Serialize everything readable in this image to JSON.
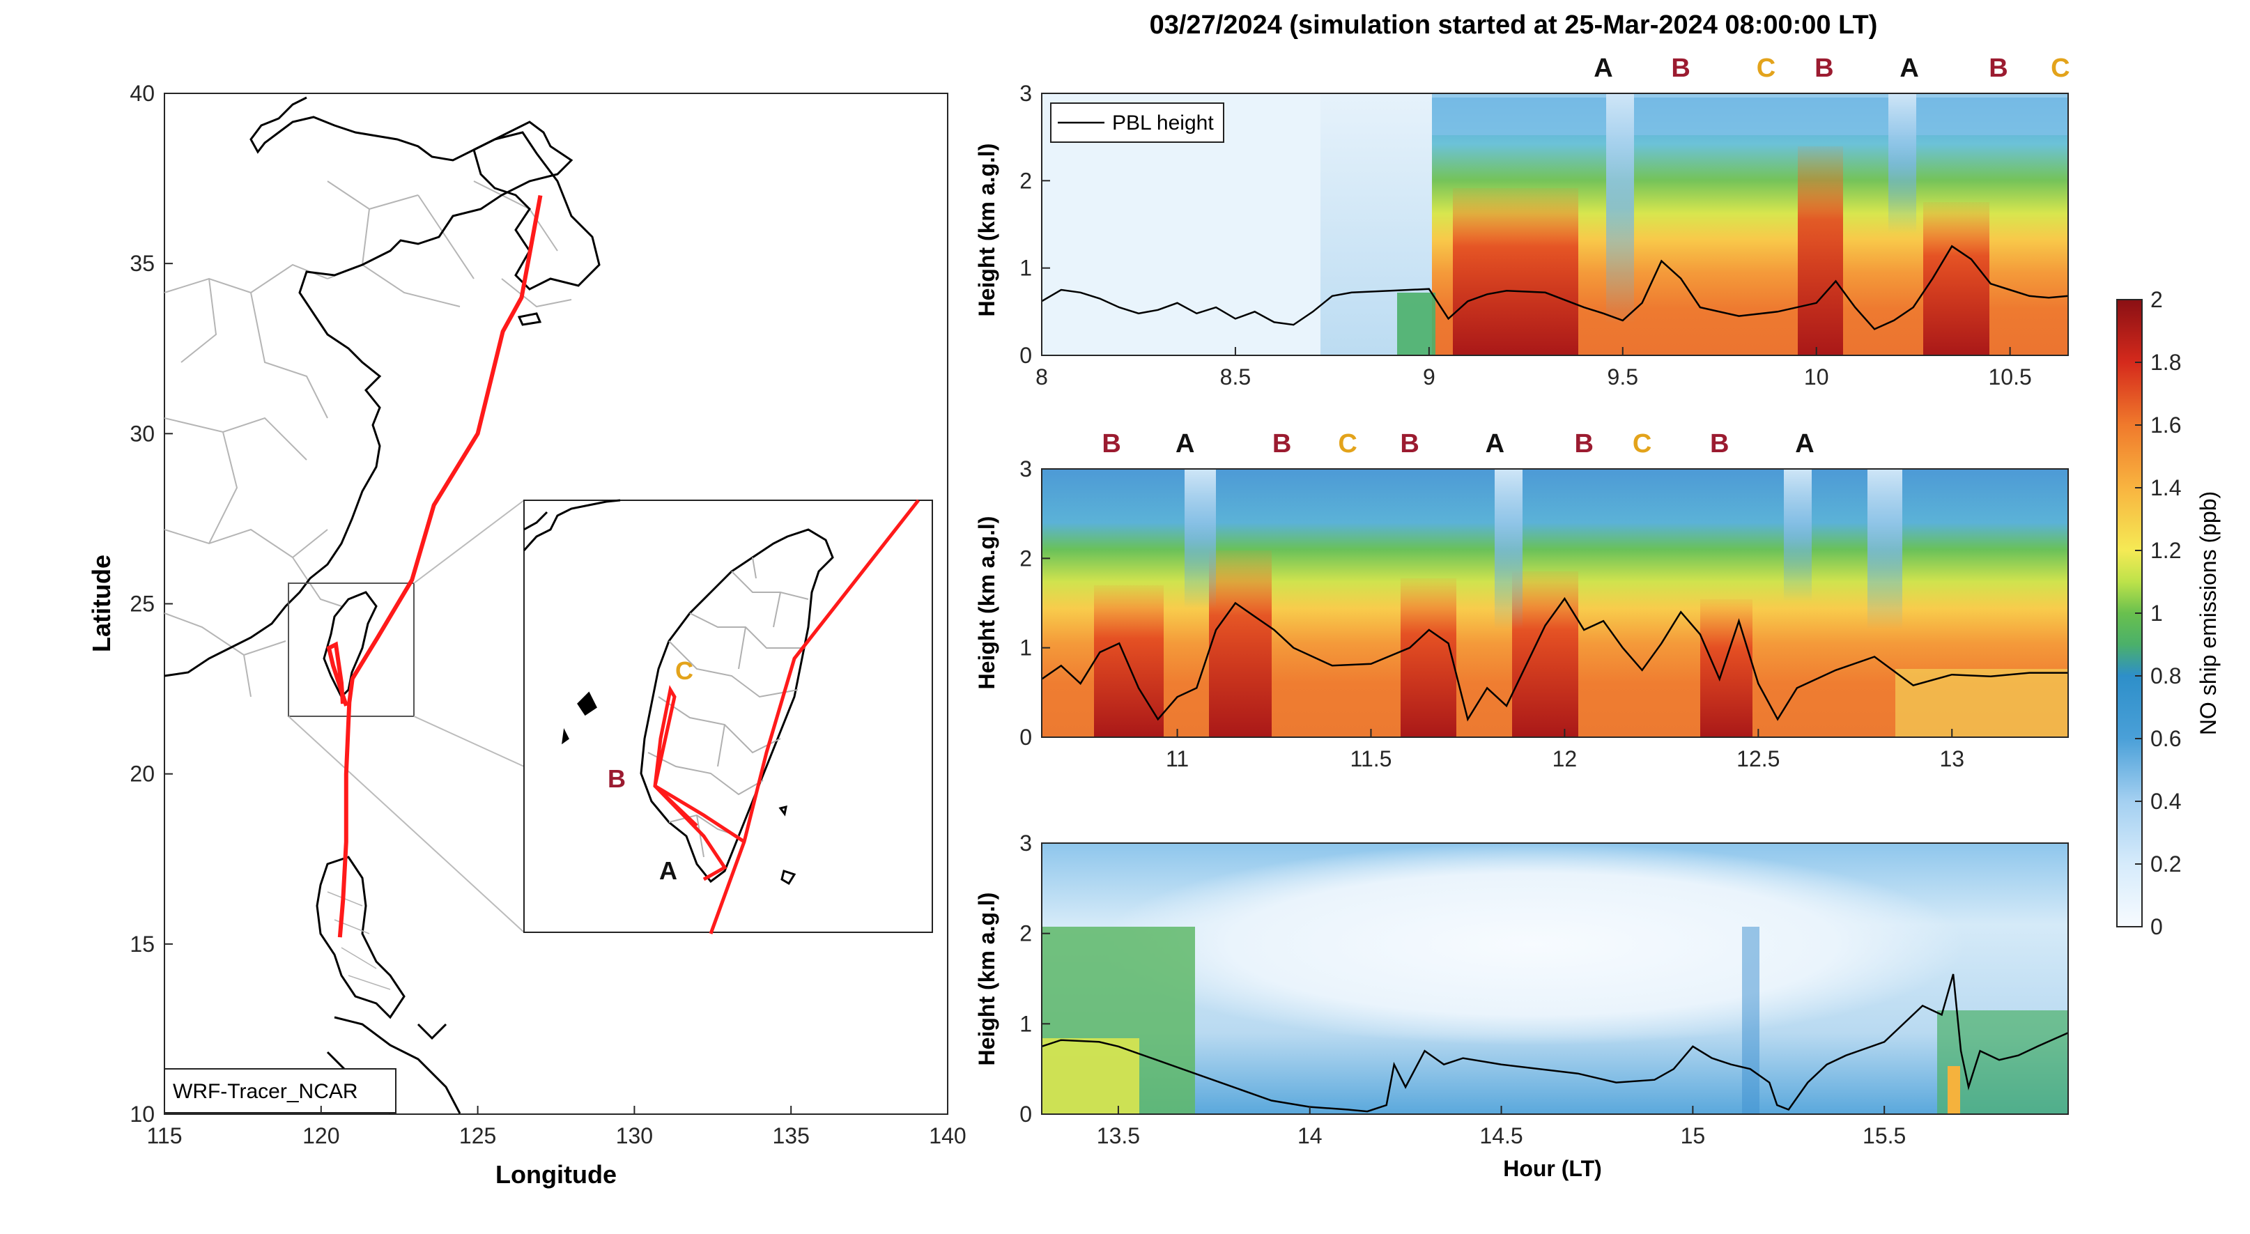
{
  "figure": {
    "title": "03/27/2024 (simulation started at 25-Mar-2024 08:00:00 LT)",
    "map_label": "WRF-Tracer_NCAR",
    "pbl_legend": "PBL height",
    "xlabel": "Hour (LT)",
    "ylabel": "Height (km a.g.l)",
    "colorbar_label": "NO ship emissions (ppb)"
  },
  "colors": {
    "track": "#ff1a1a",
    "A": "#111111",
    "B": "#9b1b30",
    "C": "#e3a31b",
    "coast": "#000000",
    "borders": "#b5b5b5"
  },
  "chart_data": [
    {
      "type": "line",
      "name": "ship-track-map",
      "xlabel": "Longitude",
      "ylabel": "Latitude",
      "xlim": [
        115,
        140
      ],
      "ylim": [
        10,
        40
      ],
      "xticks": [
        "115",
        "120",
        "125",
        "130",
        "135",
        "140"
      ],
      "yticks": [
        "10",
        "15",
        "20",
        "25",
        "30",
        "35",
        "40"
      ],
      "series": [
        {
          "x": [
            127.0,
            126.4,
            125.8,
            125.0,
            123.6,
            122.9,
            121.8,
            121.0,
            120.9,
            120.8,
            120.8,
            120.7,
            120.6
          ],
          "y": [
            37.0,
            34.0,
            33.0,
            30.0,
            27.9,
            25.7,
            24.0,
            22.8,
            22.1,
            20.0,
            18.0,
            16.3,
            15.2
          ]
        }
      ],
      "inset": {
        "markers": [
          {
            "label": "C",
            "lon": 120.9,
            "lat": 23.85
          },
          {
            "label": "B",
            "lon": 119.95,
            "lat": 23.1
          },
          {
            "label": "A",
            "lon": 120.55,
            "lat": 21.85
          }
        ]
      }
    },
    {
      "type": "heatmap",
      "name": "panel-1",
      "xlim": [
        8,
        10.65
      ],
      "ylim": [
        0,
        3
      ],
      "xticks": [
        "8",
        "8.5",
        "9",
        "9.5",
        "10",
        "10.5"
      ],
      "yticks": [
        "0",
        "1",
        "2",
        "3"
      ],
      "markers": [
        {
          "label": "A",
          "x": 9.45
        },
        {
          "label": "B",
          "x": 9.65
        },
        {
          "label": "C",
          "x": 9.87
        },
        {
          "label": "B",
          "x": 10.02
        },
        {
          "label": "A",
          "x": 10.24
        },
        {
          "label": "B",
          "x": 10.47
        },
        {
          "label": "C",
          "x": 10.63
        }
      ],
      "pbl": {
        "x": [
          8.0,
          8.05,
          8.1,
          8.15,
          8.2,
          8.25,
          8.3,
          8.35,
          8.4,
          8.45,
          8.5,
          8.55,
          8.6,
          8.65,
          8.7,
          8.75,
          8.8,
          8.9,
          9.0,
          9.05,
          9.1,
          9.15,
          9.2,
          9.3,
          9.4,
          9.45,
          9.5,
          9.55,
          9.6,
          9.65,
          9.7,
          9.8,
          9.9,
          10.0,
          10.05,
          10.1,
          10.15,
          10.2,
          10.25,
          10.3,
          10.35,
          10.4,
          10.45,
          10.5,
          10.55,
          10.6,
          10.65
        ],
        "y": [
          0.62,
          0.75,
          0.72,
          0.65,
          0.55,
          0.48,
          0.52,
          0.6,
          0.48,
          0.55,
          0.42,
          0.5,
          0.38,
          0.35,
          0.5,
          0.68,
          0.72,
          0.74,
          0.76,
          0.42,
          0.62,
          0.7,
          0.74,
          0.72,
          0.55,
          0.48,
          0.4,
          0.6,
          1.08,
          0.88,
          0.55,
          0.45,
          0.5,
          0.6,
          0.85,
          0.55,
          0.3,
          0.4,
          0.55,
          0.88,
          1.25,
          1.1,
          0.82,
          0.75,
          0.68,
          0.66,
          0.68
        ]
      }
    },
    {
      "type": "heatmap",
      "name": "panel-2",
      "xlim": [
        10.65,
        13.3
      ],
      "ylim": [
        0,
        3
      ],
      "xticks": [
        "11",
        "11.5",
        "12",
        "12.5",
        "13"
      ],
      "yticks": [
        "0",
        "1",
        "2",
        "3"
      ],
      "markers": [
        {
          "label": "B",
          "x": 10.83
        },
        {
          "label": "A",
          "x": 11.02
        },
        {
          "label": "B",
          "x": 11.27
        },
        {
          "label": "C",
          "x": 11.44
        },
        {
          "label": "B",
          "x": 11.6
        },
        {
          "label": "A",
          "x": 11.82
        },
        {
          "label": "B",
          "x": 12.05
        },
        {
          "label": "C",
          "x": 12.2
        },
        {
          "label": "B",
          "x": 12.4
        },
        {
          "label": "A",
          "x": 12.62
        }
      ],
      "pbl": {
        "x": [
          10.65,
          10.7,
          10.75,
          10.8,
          10.85,
          10.9,
          10.95,
          11.0,
          11.05,
          11.1,
          11.15,
          11.2,
          11.25,
          11.3,
          11.4,
          11.5,
          11.6,
          11.65,
          11.7,
          11.75,
          11.8,
          11.85,
          11.9,
          11.95,
          12.0,
          12.05,
          12.1,
          12.15,
          12.2,
          12.25,
          12.3,
          12.35,
          12.4,
          12.45,
          12.5,
          12.55,
          12.6,
          12.7,
          12.8,
          12.9,
          13.0,
          13.1,
          13.2,
          13.3
        ],
        "y": [
          0.65,
          0.8,
          0.6,
          0.95,
          1.05,
          0.55,
          0.2,
          0.45,
          0.55,
          1.2,
          1.5,
          1.35,
          1.2,
          1.0,
          0.8,
          0.82,
          1.0,
          1.2,
          1.05,
          0.2,
          0.55,
          0.35,
          0.8,
          1.25,
          1.55,
          1.2,
          1.3,
          1.0,
          0.75,
          1.05,
          1.4,
          1.15,
          0.65,
          1.3,
          0.6,
          0.2,
          0.55,
          0.75,
          0.9,
          0.58,
          0.7,
          0.68,
          0.72,
          0.72
        ]
      }
    },
    {
      "type": "heatmap",
      "name": "panel-3",
      "xlim": [
        13.3,
        15.98
      ],
      "ylim": [
        0,
        3
      ],
      "xticks": [
        "13.5",
        "14",
        "14.5",
        "15",
        "15.5"
      ],
      "yticks": [
        "0",
        "1",
        "2",
        "3"
      ],
      "pbl": {
        "x": [
          13.3,
          13.35,
          13.45,
          13.5,
          13.6,
          13.7,
          13.8,
          13.9,
          14.0,
          14.1,
          14.15,
          14.2,
          14.22,
          14.25,
          14.3,
          14.35,
          14.4,
          14.5,
          14.6,
          14.7,
          14.8,
          14.9,
          14.95,
          15.0,
          15.05,
          15.1,
          15.15,
          15.2,
          15.22,
          15.25,
          15.3,
          15.35,
          15.4,
          15.5,
          15.6,
          15.65,
          15.68,
          15.7,
          15.72,
          15.75,
          15.8,
          15.85,
          15.9,
          15.98
        ],
        "y": [
          0.75,
          0.82,
          0.8,
          0.75,
          0.6,
          0.45,
          0.3,
          0.15,
          0.08,
          0.05,
          0.03,
          0.1,
          0.55,
          0.3,
          0.7,
          0.55,
          0.62,
          0.55,
          0.5,
          0.45,
          0.35,
          0.38,
          0.5,
          0.75,
          0.62,
          0.55,
          0.5,
          0.35,
          0.1,
          0.05,
          0.35,
          0.55,
          0.65,
          0.8,
          1.2,
          1.1,
          1.55,
          0.7,
          0.3,
          0.7,
          0.6,
          0.65,
          0.75,
          0.9
        ]
      }
    }
  ],
  "colorbar": {
    "ticks": [
      "0",
      "0.2",
      "0.4",
      "0.6",
      "0.8",
      "1",
      "1.2",
      "1.4",
      "1.6",
      "1.8",
      "2"
    ],
    "range": [
      0,
      2
    ]
  }
}
